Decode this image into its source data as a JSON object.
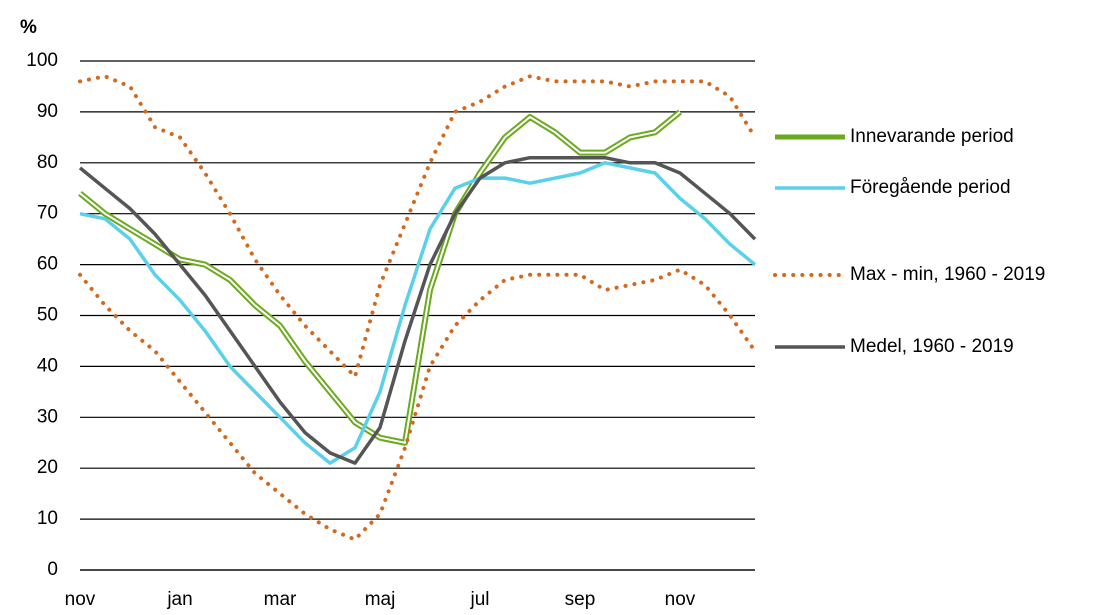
{
  "chart_data": {
    "type": "line",
    "y_label": "%",
    "categories": [
      "nov",
      null,
      null,
      null,
      "jan",
      null,
      null,
      null,
      "mar",
      null,
      null,
      null,
      "maj",
      null,
      null,
      null,
      "jul",
      null,
      null,
      null,
      "sep",
      null,
      null,
      null,
      "nov",
      null,
      null,
      null
    ],
    "series": [
      {
        "name": "Innevarande period",
        "color": "#6aaa1e",
        "style": "double",
        "values": [
          74,
          70,
          67,
          64,
          61,
          60,
          57,
          52,
          48,
          41,
          35,
          29,
          26,
          25,
          55,
          70,
          78,
          85,
          89,
          86,
          82,
          82,
          85,
          86,
          90,
          null,
          null,
          null
        ]
      },
      {
        "name": "Föregående period",
        "color": "#5bd0ea",
        "style": "solid",
        "values": [
          70,
          69,
          65,
          58,
          53,
          47,
          40,
          35,
          30,
          25,
          21,
          24,
          35,
          52,
          67,
          75,
          77,
          77,
          76,
          77,
          78,
          80,
          79,
          78,
          73,
          69,
          64,
          60
        ]
      },
      {
        "name": "Max - min, 1960 - 2019",
        "color": "#d2691e",
        "style": "dotted",
        "values": [
          96,
          97,
          95,
          87,
          85,
          78,
          70,
          61,
          54,
          48,
          43,
          38,
          56,
          68,
          80,
          90,
          92,
          95,
          97,
          96,
          96,
          96,
          95,
          96,
          96,
          96,
          93,
          85
        ]
      },
      {
        "color": "#d2691e",
        "style": "dotted",
        "values": [
          58,
          52,
          47,
          43,
          37,
          31,
          25,
          19,
          15,
          11,
          8,
          6,
          11,
          24,
          40,
          48,
          53,
          57,
          58,
          58,
          58,
          55,
          56,
          57,
          59,
          56,
          50,
          43
        ]
      },
      {
        "name": "Medel, 1960 - 2019",
        "color": "#555555",
        "style": "solid",
        "values": [
          79,
          75,
          71,
          66,
          60,
          54,
          47,
          40,
          33,
          27,
          23,
          21,
          28,
          45,
          60,
          70,
          77,
          80,
          81,
          81,
          81,
          81,
          80,
          80,
          78,
          74,
          70,
          65
        ]
      }
    ],
    "ylim": [
      0,
      100
    ],
    "yticks": [
      0,
      10,
      20,
      30,
      40,
      50,
      60,
      70,
      80,
      90,
      100
    ],
    "grid": true,
    "legend": "right"
  }
}
